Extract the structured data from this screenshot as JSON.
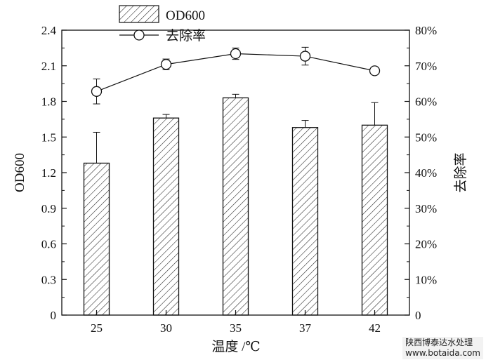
{
  "chart_data": {
    "type": "bar+line",
    "categories": [
      "25",
      "30",
      "35",
      "37",
      "42"
    ],
    "xlabel": "温度 /℃",
    "ylabel_left": "OD600",
    "ylabel_right": "去除率",
    "ylim_left": [
      0,
      2.4
    ],
    "ylim_right": [
      0,
      80
    ],
    "yticks_left": [
      "0",
      "0.3",
      "0.6",
      "0.9",
      "1.2",
      "1.5",
      "1.8",
      "2.1",
      "2.4"
    ],
    "yticks_right": [
      "0",
      "10%",
      "20%",
      "30%",
      "40%",
      "50%",
      "60%",
      "70%",
      "80%"
    ],
    "grid": false,
    "legend_position": "top-left",
    "series": [
      {
        "name": "OD600",
        "kind": "bar",
        "pattern": "hatched",
        "values": [
          1.28,
          1.66,
          1.83,
          1.58,
          1.6
        ],
        "errors": [
          0.26,
          0.03,
          0.03,
          0.06,
          0.19
        ]
      },
      {
        "name": "去除率",
        "kind": "line",
        "marker": "open-circle",
        "values": [
          62.8,
          70.4,
          73.4,
          72.7,
          68.6
        ],
        "errors": [
          3.5,
          1.5,
          1.6,
          2.5,
          0.8
        ]
      }
    ]
  },
  "watermark": {
    "line1": "陕西博泰达水处理",
    "line2": "www.botaida.com"
  }
}
